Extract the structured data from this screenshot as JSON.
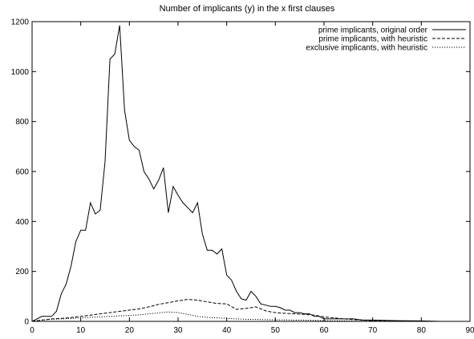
{
  "chart_data": {
    "type": "line",
    "title": "Number of implicants (y) in the x first clauses",
    "xlabel": "",
    "ylabel": "",
    "xlim": [
      0,
      90
    ],
    "ylim": [
      0,
      1200
    ],
    "xticks": [
      0,
      10,
      20,
      30,
      40,
      50,
      60,
      70,
      80,
      90
    ],
    "yticks": [
      0,
      200,
      400,
      600,
      800,
      1000,
      1200
    ],
    "xtick_labels": [
      "0",
      "10",
      "20",
      "30",
      "40",
      "50",
      "60",
      "70",
      "80",
      "90"
    ],
    "ytick_labels": [
      "0",
      "200",
      "400",
      "600",
      "800",
      "1000",
      "1200"
    ],
    "grid": false,
    "legend_position": "top-right",
    "series": [
      {
        "name": "prime implicants, original order",
        "style": "solid",
        "x": [
          0,
          1,
          2,
          3,
          4,
          5,
          6,
          7,
          8,
          9,
          10,
          11,
          12,
          13,
          14,
          15,
          16,
          17,
          18,
          19,
          20,
          21,
          22,
          23,
          24,
          25,
          26,
          27,
          28,
          29,
          30,
          31,
          32,
          33,
          34,
          35,
          36,
          37,
          38,
          39,
          40,
          41,
          42,
          43,
          44,
          45,
          46,
          47,
          48,
          49,
          50,
          51,
          52,
          53,
          54,
          55,
          56,
          57,
          58,
          59,
          60,
          62,
          64,
          66,
          68,
          70,
          75,
          80,
          84
        ],
        "y": [
          0,
          10,
          20,
          20,
          20,
          40,
          110,
          150,
          220,
          320,
          365,
          365,
          475,
          430,
          445,
          640,
          1050,
          1070,
          1185,
          845,
          725,
          700,
          685,
          600,
          570,
          530,
          565,
          615,
          435,
          540,
          505,
          475,
          455,
          435,
          475,
          350,
          285,
          285,
          270,
          290,
          185,
          165,
          120,
          90,
          85,
          120,
          100,
          70,
          65,
          60,
          60,
          55,
          45,
          45,
          35,
          35,
          30,
          30,
          20,
          20,
          10,
          10,
          10,
          10,
          5,
          5,
          3,
          2,
          0
        ]
      },
      {
        "name": "prime implicants, with heuristic",
        "style": "dashed",
        "x": [
          0,
          2,
          4,
          6,
          8,
          10,
          12,
          14,
          16,
          18,
          20,
          22,
          24,
          26,
          28,
          30,
          32,
          34,
          36,
          38,
          40,
          42,
          44,
          46,
          48,
          50,
          52,
          54,
          56,
          58,
          60,
          62,
          64,
          66,
          68,
          70,
          75,
          80
        ],
        "y": [
          0,
          5,
          10,
          12,
          15,
          20,
          25,
          30,
          35,
          40,
          45,
          50,
          58,
          68,
          75,
          82,
          88,
          85,
          78,
          72,
          70,
          48,
          52,
          58,
          42,
          35,
          32,
          30,
          28,
          25,
          18,
          14,
          10,
          7,
          5,
          3,
          2,
          0
        ]
      },
      {
        "name": "exclusive implicants, with heuristic",
        "style": "dotted",
        "x": [
          0,
          2,
          4,
          6,
          8,
          10,
          12,
          14,
          16,
          18,
          20,
          22,
          24,
          26,
          28,
          30,
          32,
          34,
          36,
          38,
          40,
          42,
          44,
          46,
          48,
          50,
          52,
          54,
          56,
          58,
          60,
          62,
          64,
          66,
          68,
          70,
          75,
          80
        ],
        "y": [
          0,
          5,
          8,
          10,
          12,
          14,
          16,
          18,
          20,
          22,
          24,
          26,
          30,
          34,
          38,
          35,
          28,
          20,
          16,
          14,
          12,
          10,
          8,
          8,
          7,
          6,
          6,
          5,
          5,
          4,
          3,
          2,
          2,
          1,
          1,
          0,
          0,
          0
        ]
      }
    ]
  }
}
